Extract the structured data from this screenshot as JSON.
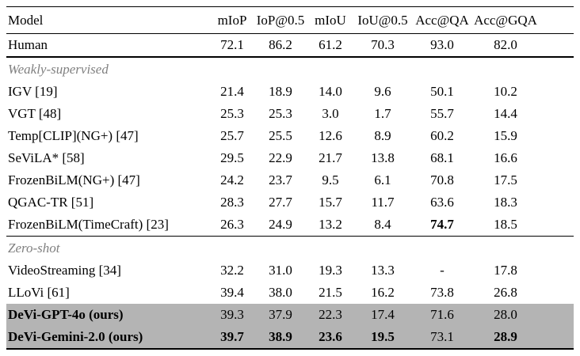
{
  "table": {
    "columns": [
      "Model",
      "mIoP",
      "IoP@0.5",
      "mIoU",
      "IoU@0.5",
      "Acc@QA",
      "Acc@GQA"
    ],
    "highlight_color": "#b4b4b4",
    "section_text_color": "#808080",
    "rows": [
      {
        "type": "data",
        "model": "Human",
        "values": [
          "72.1",
          "86.2",
          "61.2",
          "70.3",
          "93.0",
          "82.0"
        ],
        "bold_values": [],
        "model_bold": false,
        "highlight": false,
        "rule": "thick-below"
      },
      {
        "type": "section",
        "label": "Weakly-supervised"
      },
      {
        "type": "data",
        "model": "IGV [19]",
        "values": [
          "21.4",
          "18.9",
          "14.0",
          "9.6",
          "50.1",
          "10.2"
        ],
        "bold_values": [],
        "model_bold": false,
        "highlight": false,
        "rule": ""
      },
      {
        "type": "data",
        "model": "VGT [48]",
        "values": [
          "25.3",
          "25.3",
          "3.0",
          "1.7",
          "55.7",
          "14.4"
        ],
        "bold_values": [],
        "model_bold": false,
        "highlight": false,
        "rule": ""
      },
      {
        "type": "data",
        "model": "Temp[CLIP](NG+) [47]",
        "values": [
          "25.7",
          "25.5",
          "12.6",
          "8.9",
          "60.2",
          "15.9"
        ],
        "bold_values": [],
        "model_bold": false,
        "highlight": false,
        "rule": ""
      },
      {
        "type": "data",
        "model": "SeViLA* [58]",
        "values": [
          "29.5",
          "22.9",
          "21.7",
          "13.8",
          "68.1",
          "16.6"
        ],
        "bold_values": [],
        "model_bold": false,
        "highlight": false,
        "rule": ""
      },
      {
        "type": "data",
        "model": "FrozenBiLM(NG+) [47]",
        "values": [
          "24.2",
          "23.7",
          "9.5",
          "6.1",
          "70.8",
          "17.5"
        ],
        "bold_values": [],
        "model_bold": false,
        "highlight": false,
        "rule": ""
      },
      {
        "type": "data",
        "model": "QGAC-TR [51]",
        "values": [
          "28.3",
          "27.7",
          "15.7",
          "11.7",
          "63.6",
          "18.3"
        ],
        "bold_values": [],
        "model_bold": false,
        "highlight": false,
        "rule": ""
      },
      {
        "type": "data",
        "model": "FrozenBiLM(TimeCraft) [23]",
        "values": [
          "26.3",
          "24.9",
          "13.2",
          "8.4",
          "74.7",
          "18.5"
        ],
        "bold_values": [
          4
        ],
        "model_bold": false,
        "highlight": false,
        "rule": "thin-below"
      },
      {
        "type": "section",
        "label": "Zero-shot"
      },
      {
        "type": "data",
        "model": "VideoStreaming [34]",
        "values": [
          "32.2",
          "31.0",
          "19.3",
          "13.3",
          "-",
          "17.8"
        ],
        "bold_values": [],
        "model_bold": false,
        "highlight": false,
        "rule": ""
      },
      {
        "type": "data",
        "model": "LLoVi [61]",
        "values": [
          "39.4",
          "38.0",
          "21.5",
          "16.2",
          "73.8",
          "26.8"
        ],
        "bold_values": [],
        "model_bold": false,
        "highlight": false,
        "rule": ""
      },
      {
        "type": "data",
        "model": "DeVi-GPT-4o (ours)",
        "values": [
          "39.3",
          "37.9",
          "22.3",
          "17.4",
          "71.6",
          "28.0"
        ],
        "bold_values": [],
        "model_bold": true,
        "highlight": true,
        "rule": ""
      },
      {
        "type": "data",
        "model": "DeVi-Gemini-2.0 (ours)",
        "values": [
          "39.7",
          "38.9",
          "23.6",
          "19.5",
          "73.1",
          "28.9"
        ],
        "bold_values": [
          0,
          1,
          2,
          3,
          5
        ],
        "model_bold": true,
        "highlight": true,
        "rule": ""
      }
    ]
  }
}
